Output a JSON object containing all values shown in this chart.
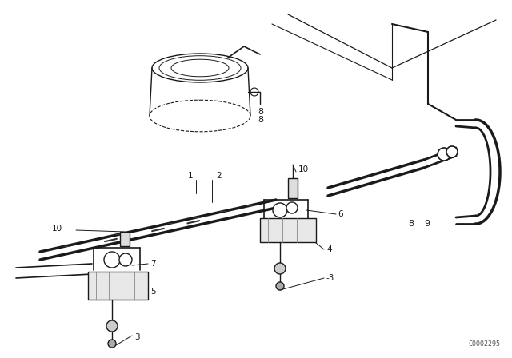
{
  "bg_color": "#ffffff",
  "line_color": "#1a1a1a",
  "fig_width": 6.4,
  "fig_height": 4.48,
  "dpi": 100,
  "watermark": "C0002295"
}
